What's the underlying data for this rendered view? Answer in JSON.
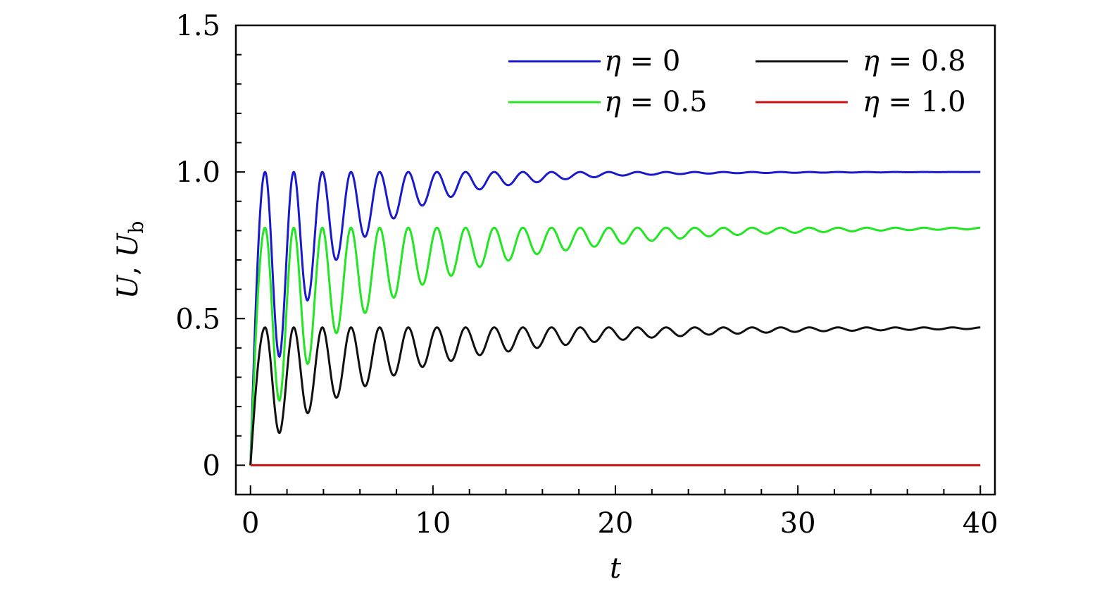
{
  "chart_data": {
    "type": "line",
    "xlabel": "t",
    "ylabel": "U, U_b",
    "ylabel_main": "U",
    "ylabel_sep": ", ",
    "ylabel_second": "U",
    "ylabel_sub": "b",
    "xlim": [
      -0.8,
      40.8
    ],
    "ylim": [
      -0.1,
      1.5
    ],
    "x_ticks": [
      0,
      10,
      20,
      30,
      40
    ],
    "x_tick_labels": [
      "0",
      "10",
      "20",
      "30",
      "40"
    ],
    "x_minor_step": 2,
    "y_ticks": [
      0,
      0.5,
      1.0,
      1.5
    ],
    "y_tick_labels": [
      "0",
      "0.5",
      "1.0",
      "1.5"
    ],
    "y_minor_step": 0.1,
    "grid": false,
    "legend_position": "top-right",
    "legend_columns": 2,
    "t_max": 40,
    "series": [
      {
        "name": "η = 0",
        "label_lhs": "η",
        "label_rhs": "= 0",
        "color": "#1a1acc",
        "steady_value": 1.0,
        "peak": 1.0,
        "min_points": [
          [
            1.6,
            0.37
          ],
          [
            3.2,
            0.57
          ],
          [
            4.7,
            0.7
          ],
          [
            6.3,
            0.78
          ],
          [
            7.8,
            0.84
          ],
          [
            9.4,
            0.885
          ],
          [
            11.0,
            0.915
          ],
          [
            12.5,
            0.94
          ],
          [
            14.1,
            0.955
          ],
          [
            15.7,
            0.965
          ],
          [
            17.2,
            0.975
          ],
          [
            18.8,
            0.982
          ],
          [
            20.4,
            0.988
          ],
          [
            23.5,
            0.993
          ],
          [
            26.7,
            0.996
          ],
          [
            32.0,
            0.998
          ],
          [
            40.0,
            1.0
          ]
        ]
      },
      {
        "name": "η = 0.5",
        "label_lhs": "η",
        "label_rhs": "= 0.5",
        "color": "#22e622",
        "steady_value": 0.81,
        "peak": 0.81,
        "min_points": [
          [
            1.6,
            0.22
          ],
          [
            3.2,
            0.35
          ],
          [
            4.7,
            0.45
          ],
          [
            6.3,
            0.52
          ],
          [
            7.8,
            0.57
          ],
          [
            9.4,
            0.615
          ],
          [
            12.5,
            0.675
          ],
          [
            15.7,
            0.72
          ],
          [
            18.8,
            0.745
          ],
          [
            21.9,
            0.765
          ],
          [
            25.0,
            0.78
          ],
          [
            28.2,
            0.79
          ],
          [
            31.3,
            0.795
          ],
          [
            34.4,
            0.8
          ],
          [
            40.0,
            0.805
          ]
        ]
      },
      {
        "name": "η = 0.8",
        "label_lhs": "η",
        "label_rhs": "= 0.8",
        "color": "#111111",
        "steady_value": 0.47,
        "peak": 0.47,
        "min_points": [
          [
            1.6,
            0.11
          ],
          [
            3.2,
            0.18
          ],
          [
            4.7,
            0.23
          ],
          [
            6.3,
            0.27
          ],
          [
            7.8,
            0.305
          ],
          [
            9.4,
            0.335
          ],
          [
            12.5,
            0.375
          ],
          [
            15.7,
            0.4
          ],
          [
            18.8,
            0.42
          ],
          [
            21.9,
            0.435
          ],
          [
            25.0,
            0.445
          ],
          [
            28.2,
            0.452
          ],
          [
            31.3,
            0.457
          ],
          [
            34.4,
            0.46
          ],
          [
            40.0,
            0.465
          ]
        ]
      },
      {
        "name": "η = 1.0",
        "label_lhs": "η",
        "label_rhs": "= 1.0",
        "color": "#cc1111",
        "steady_value": 0.0,
        "peak": 0.0,
        "min_points": [
          [
            0,
            0
          ],
          [
            40,
            0
          ]
        ]
      }
    ]
  }
}
